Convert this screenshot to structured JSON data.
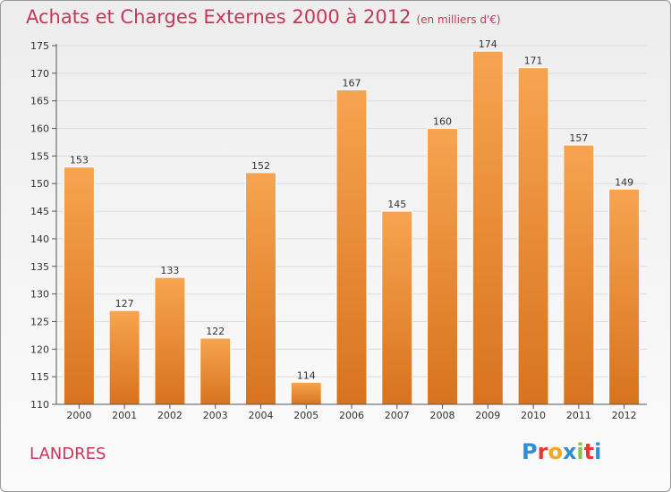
{
  "title": "Achats et Charges Externes 2000 à 2012",
  "subtitle": "(en milliers d'€)",
  "commune": "LANDRES",
  "logo": {
    "letters": [
      {
        "ch": "P",
        "color": "#2f8fd0"
      },
      {
        "ch": "r",
        "color": "#e53935"
      },
      {
        "ch": "o",
        "color": "#f5a623"
      },
      {
        "ch": "x",
        "color": "#2f8fd0"
      },
      {
        "ch": "i",
        "color": "#8bc34a"
      },
      {
        "ch": "t",
        "color": "#e53935"
      },
      {
        "ch": "i",
        "color": "#2f8fd0"
      }
    ]
  },
  "chart_data": {
    "type": "bar",
    "categories": [
      "2000",
      "2001",
      "2002",
      "2003",
      "2004",
      "2005",
      "2006",
      "2007",
      "2008",
      "2009",
      "2010",
      "2011",
      "2012"
    ],
    "values": [
      153,
      127,
      133,
      122,
      152,
      114,
      167,
      145,
      160,
      174,
      171,
      157,
      149
    ],
    "title": "Achats et Charges Externes 2000 à 2012",
    "xlabel": "",
    "ylabel": "",
    "ylim": [
      110,
      175
    ],
    "yticks": [
      110,
      115,
      120,
      125,
      130,
      135,
      140,
      145,
      150,
      155,
      160,
      165,
      170,
      175
    ],
    "grid": true,
    "bar_color_top": "#f7a450",
    "bar_color_bottom": "#d8731e"
  }
}
